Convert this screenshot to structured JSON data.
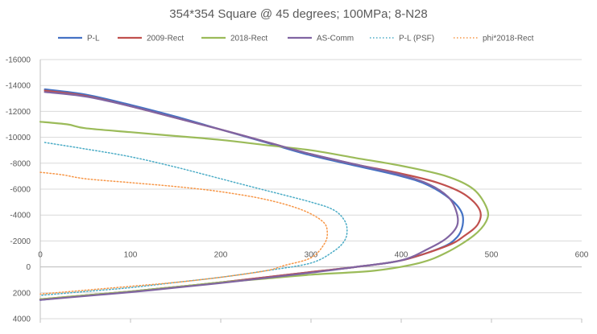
{
  "chart_data": {
    "type": "line",
    "title": "354*354 Square @ 45 degrees; 100MPa; 8-N28",
    "xlabel": "",
    "ylabel": "",
    "xlim": [
      0,
      600
    ],
    "ylim": [
      4000,
      -16000
    ],
    "y_axis_reversed": true,
    "x_ticks": [
      "0",
      "100",
      "200",
      "300",
      "400",
      "500",
      "600"
    ],
    "x_tick_values": [
      0,
      100,
      200,
      300,
      400,
      500,
      600
    ],
    "y_ticks": [
      "-16000",
      "-14000",
      "-12000",
      "-10000",
      "-8000",
      "-6000",
      "-4000",
      "-2000",
      "0",
      "2000",
      "4000"
    ],
    "y_tick_values": [
      -16000,
      -14000,
      -12000,
      -10000,
      -8000,
      -6000,
      -4000,
      -2000,
      0,
      2000,
      4000
    ],
    "grid": "horizontal",
    "legend_position": "top",
    "series": [
      {
        "name": "P-L",
        "color": "#4472C4",
        "dash": "solid",
        "points": [
          [
            5,
            -13700
          ],
          [
            50,
            -13300
          ],
          [
            100,
            -12500
          ],
          [
            150,
            -11600
          ],
          [
            200,
            -10600
          ],
          [
            250,
            -9600
          ],
          [
            300,
            -8600
          ],
          [
            350,
            -7800
          ],
          [
            400,
            -7000
          ],
          [
            430,
            -6300
          ],
          [
            455,
            -5200
          ],
          [
            467,
            -4200
          ],
          [
            468,
            -3200
          ],
          [
            462,
            -2300
          ],
          [
            445,
            -1500
          ],
          [
            400,
            -500
          ],
          [
            350,
            0
          ],
          [
            300,
            400
          ],
          [
            250,
            800
          ],
          [
            200,
            1200
          ],
          [
            150,
            1550
          ],
          [
            100,
            1900
          ],
          [
            50,
            2200
          ],
          [
            0,
            2550
          ]
        ]
      },
      {
        "name": "2009-Rect",
        "color": "#C0504D",
        "dash": "solid",
        "points": [
          [
            5,
            -13600
          ],
          [
            50,
            -13200
          ],
          [
            100,
            -12400
          ],
          [
            150,
            -11500
          ],
          [
            200,
            -10600
          ],
          [
            250,
            -9650
          ],
          [
            300,
            -8700
          ],
          [
            350,
            -7900
          ],
          [
            400,
            -7200
          ],
          [
            440,
            -6500
          ],
          [
            470,
            -5600
          ],
          [
            487,
            -4400
          ],
          [
            485,
            -3300
          ],
          [
            470,
            -2400
          ],
          [
            450,
            -1600
          ],
          [
            400,
            -500
          ],
          [
            350,
            0
          ],
          [
            300,
            400
          ],
          [
            250,
            800
          ],
          [
            200,
            1200
          ],
          [
            150,
            1550
          ],
          [
            100,
            1900
          ],
          [
            50,
            2200
          ],
          [
            0,
            2500
          ]
        ]
      },
      {
        "name": "2018-Rect",
        "color": "#9BBB59",
        "dash": "solid",
        "points": [
          [
            0,
            -11200
          ],
          [
            30,
            -11000
          ],
          [
            50,
            -10700
          ],
          [
            100,
            -10400
          ],
          [
            150,
            -10100
          ],
          [
            200,
            -9800
          ],
          [
            250,
            -9400
          ],
          [
            300,
            -9000
          ],
          [
            350,
            -8400
          ],
          [
            400,
            -7800
          ],
          [
            450,
            -7000
          ],
          [
            480,
            -6000
          ],
          [
            495,
            -4500
          ],
          [
            494,
            -3500
          ],
          [
            480,
            -2400
          ],
          [
            450,
            -1100
          ],
          [
            420,
            -300
          ],
          [
            370,
            300
          ],
          [
            300,
            600
          ],
          [
            250,
            900
          ],
          [
            200,
            1200
          ],
          [
            150,
            1550
          ],
          [
            100,
            1900
          ],
          [
            50,
            2200
          ],
          [
            0,
            2500
          ]
        ]
      },
      {
        "name": "AS-Comm",
        "color": "#8064A2",
        "dash": "solid",
        "points": [
          [
            5,
            -13500
          ],
          [
            50,
            -13150
          ],
          [
            100,
            -12400
          ],
          [
            150,
            -11500
          ],
          [
            200,
            -10600
          ],
          [
            250,
            -9650
          ],
          [
            300,
            -8700
          ],
          [
            350,
            -7900
          ],
          [
            400,
            -7100
          ],
          [
            430,
            -6400
          ],
          [
            452,
            -5400
          ],
          [
            461,
            -4300
          ],
          [
            462,
            -3200
          ],
          [
            450,
            -2200
          ],
          [
            430,
            -1400
          ],
          [
            400,
            -500
          ],
          [
            350,
            0
          ],
          [
            300,
            450
          ],
          [
            250,
            850
          ],
          [
            200,
            1250
          ],
          [
            150,
            1600
          ],
          [
            100,
            1950
          ],
          [
            50,
            2250
          ],
          [
            0,
            2550
          ]
        ]
      },
      {
        "name": "P-L (PSF)",
        "color": "#4BACC6",
        "dash": "dotted",
        "points": [
          [
            5,
            -9600
          ],
          [
            50,
            -9100
          ],
          [
            100,
            -8500
          ],
          [
            150,
            -7700
          ],
          [
            200,
            -6800
          ],
          [
            250,
            -5900
          ],
          [
            300,
            -5000
          ],
          [
            325,
            -4400
          ],
          [
            337,
            -3600
          ],
          [
            340,
            -2800
          ],
          [
            337,
            -2000
          ],
          [
            325,
            -1200
          ],
          [
            300,
            -300
          ],
          [
            250,
            300
          ],
          [
            200,
            800
          ],
          [
            150,
            1200
          ],
          [
            100,
            1600
          ],
          [
            50,
            1900
          ],
          [
            0,
            2200
          ]
        ]
      },
      {
        "name": "phi*2018-Rect",
        "color": "#F79646",
        "dash": "dotted",
        "points": [
          [
            0,
            -7300
          ],
          [
            25,
            -7100
          ],
          [
            50,
            -6800
          ],
          [
            100,
            -6500
          ],
          [
            150,
            -6200
          ],
          [
            200,
            -5800
          ],
          [
            250,
            -5200
          ],
          [
            290,
            -4400
          ],
          [
            313,
            -3500
          ],
          [
            318,
            -2700
          ],
          [
            315,
            -1800
          ],
          [
            300,
            -700
          ],
          [
            270,
            -100
          ],
          [
            250,
            300
          ],
          [
            200,
            800
          ],
          [
            150,
            1200
          ],
          [
            100,
            1500
          ],
          [
            50,
            1800
          ],
          [
            0,
            2100
          ]
        ]
      }
    ]
  }
}
